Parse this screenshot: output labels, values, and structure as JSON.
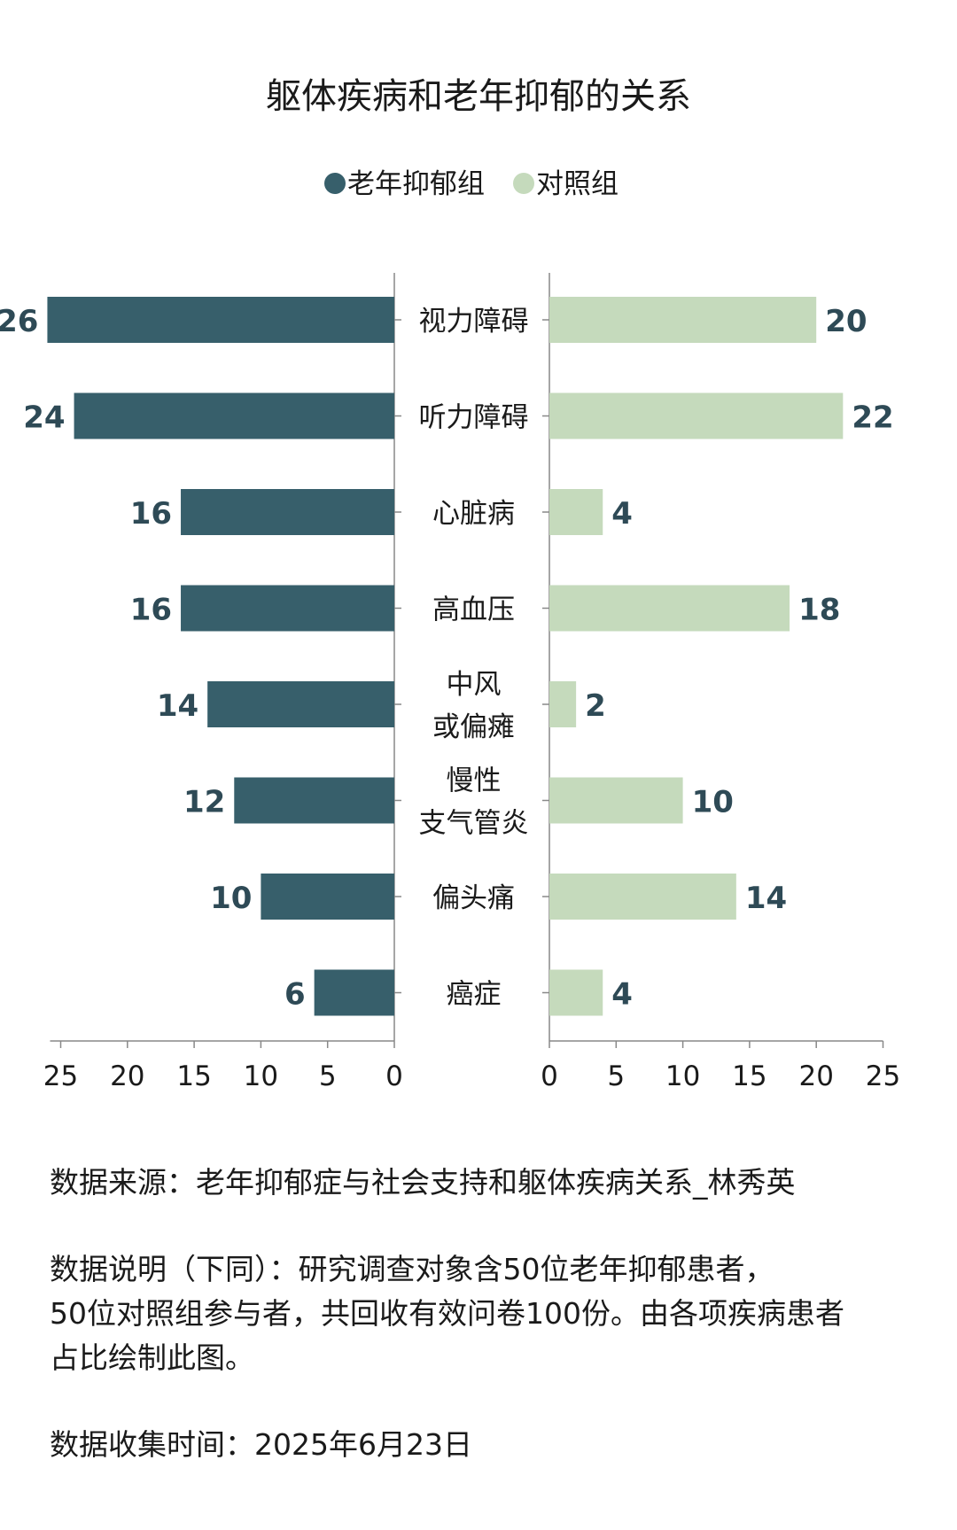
{
  "chart_data": {
    "type": "bar",
    "orientation": "horizontal-butterfly",
    "title": "躯体疾病和老年抑郁的关系",
    "categories": [
      "视力障碍",
      "听力障碍",
      "心脏病",
      "高血压",
      "中风\n或偏瘫",
      "慢性\n支气管炎",
      "偏头痛",
      "癌症"
    ],
    "series": [
      {
        "name": "老年抑郁组",
        "color": "#375f6b",
        "values": [
          26,
          24,
          16,
          16,
          14,
          12,
          10,
          6
        ]
      },
      {
        "name": "对照组",
        "color": "#c5dabc",
        "values": [
          20,
          22,
          4,
          18,
          2,
          10,
          14,
          4
        ]
      }
    ],
    "xlim": [
      0,
      25
    ],
    "xticks": [
      0,
      5,
      10,
      15,
      20,
      25
    ],
    "legend_position": "top-center",
    "grid": false
  },
  "notes": {
    "source": "数据来源：老年抑郁症与社会支持和躯体疾病关系_林秀英",
    "description_lines": [
      "数据说明（下同）：研究调查对象含50位老年抑郁患者，",
      "50位对照组参与者，共回收有效问卷100份。由各项疾病患者",
      "占比绘制此图。"
    ],
    "collection_time": "数据收集时间：2025年6月23日"
  }
}
